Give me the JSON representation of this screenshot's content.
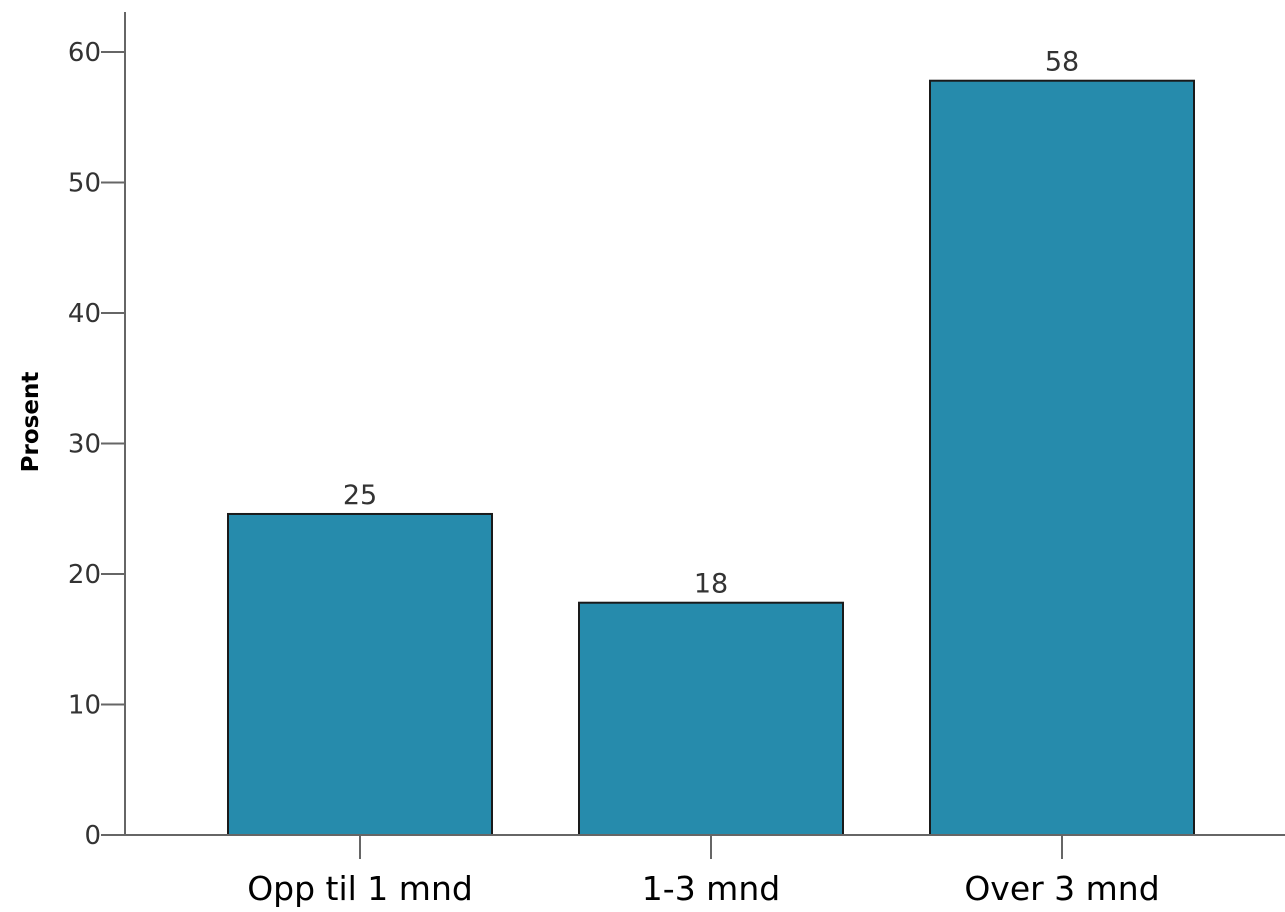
{
  "chart_data": {
    "type": "bar",
    "title": "",
    "categories": [
      "Opp til 1 mnd",
      "1-3 mnd",
      "Over 3 mnd"
    ],
    "values": [
      24.6,
      17.8,
      57.8
    ],
    "data_labels": [
      "25",
      "18",
      "58"
    ],
    "xlabel": "",
    "ylabel": "Prosent",
    "ylim": [
      0,
      60
    ],
    "yticks": [
      0,
      10,
      20,
      30,
      40,
      50,
      60
    ],
    "grid": false,
    "legend": "none",
    "bar_color": "#268bac",
    "bar_edge_color": "#1a1a1a"
  }
}
